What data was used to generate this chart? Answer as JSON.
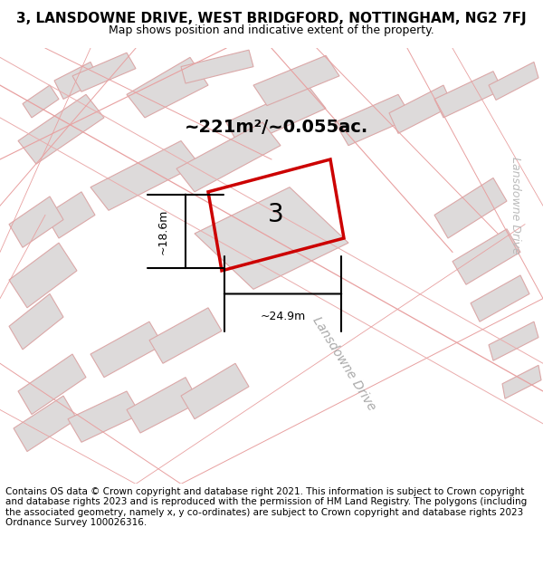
{
  "title": "3, LANSDOWNE DRIVE, WEST BRIDGFORD, NOTTINGHAM, NG2 7FJ",
  "subtitle": "Map shows position and indicative extent of the property.",
  "footer": "Contains OS data © Crown copyright and database right 2021. This information is subject to Crown copyright and database rights 2023 and is reproduced with the permission of HM Land Registry. The polygons (including the associated geometry, namely x, y co-ordinates) are subject to Crown copyright and database rights 2023 Ordnance Survey 100026316.",
  "area_label": "~221m²/~0.055ac.",
  "width_label": "~24.9m",
  "height_label": "~18.6m",
  "plot_number": "3",
  "bg_color": "#f5f5f5",
  "map_bg": "#f0eeee",
  "plot_color": "#cc0000",
  "road_label_1": "Lansdowne Drive",
  "road_label_2": "Lansdowne Drive",
  "title_fontsize": 11,
  "subtitle_fontsize": 9,
  "footer_fontsize": 7.5
}
